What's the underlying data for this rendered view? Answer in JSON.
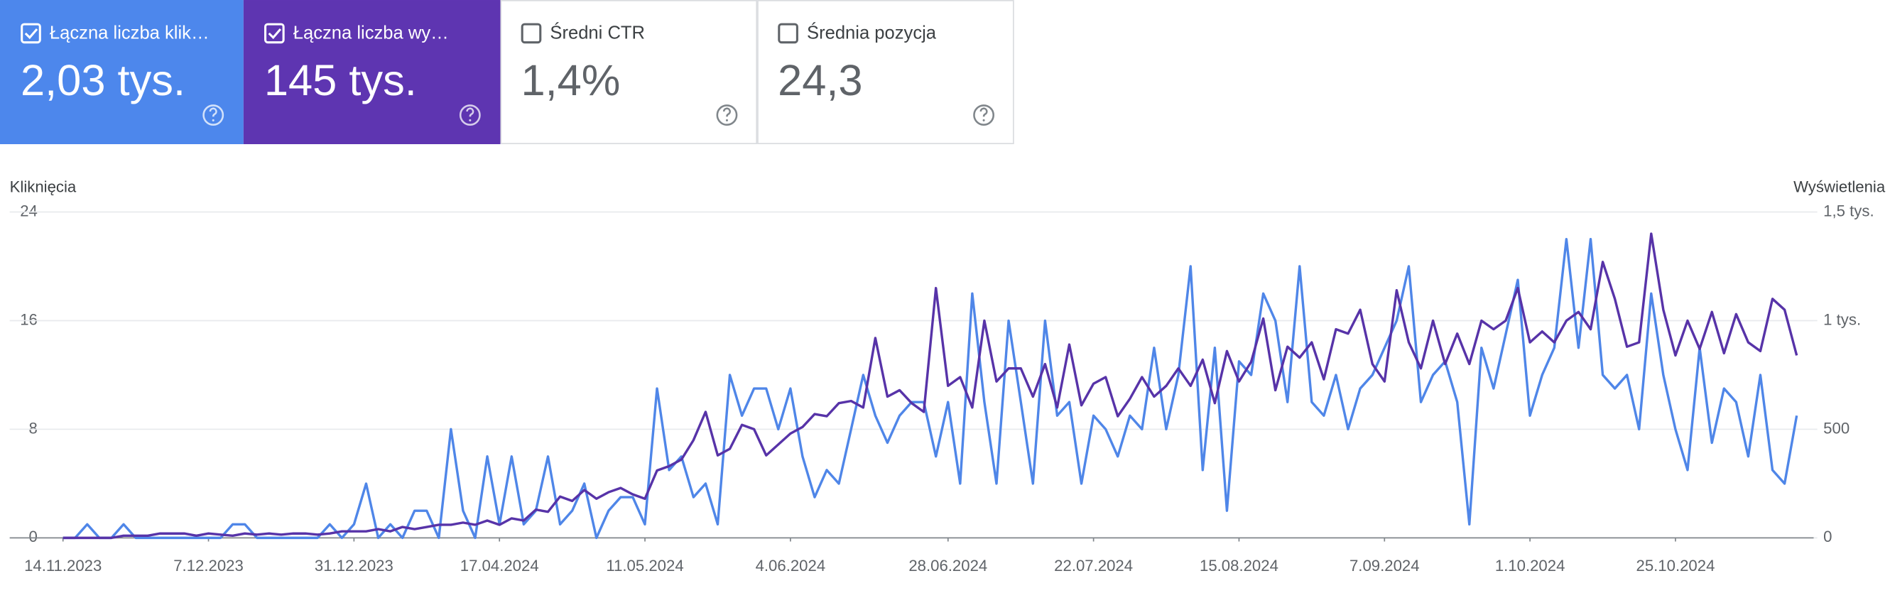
{
  "cards": [
    {
      "label": "Łączna liczba klik…",
      "value": "2,03 tys.",
      "checked": true,
      "color": "#4d87ec"
    },
    {
      "label": "Łączna liczba wy…",
      "value": "145 tys.",
      "checked": true,
      "color": "#5e35b1"
    },
    {
      "label": "Średni CTR",
      "value": "1,4%",
      "checked": false,
      "color": "#ffffff"
    },
    {
      "label": "Średnia pozycja",
      "value": "24,3",
      "checked": false,
      "color": "#ffffff"
    }
  ],
  "chart_data": {
    "type": "line",
    "y_label": "Kliknięcia",
    "y2_label": "Wyświetlenia",
    "xlim": [
      0,
      143
    ],
    "xticks": [
      {
        "value": 0,
        "label": "14.11.2023"
      },
      {
        "value": 12,
        "label": "7.12.2023"
      },
      {
        "value": 24,
        "label": "31.12.2023"
      },
      {
        "value": 36,
        "label": "17.04.2024"
      },
      {
        "value": 48,
        "label": "11.05.2024"
      },
      {
        "value": 60,
        "label": "4.06.2024"
      },
      {
        "value": 73,
        "label": "28.06.2024"
      },
      {
        "value": 85,
        "label": "22.07.2024"
      },
      {
        "value": 97,
        "label": "15.08.2024"
      },
      {
        "value": 109,
        "label": "7.09.2024"
      },
      {
        "value": 121,
        "label": "1.10.2024"
      },
      {
        "value": 133,
        "label": "25.10.2024"
      }
    ],
    "ylim": [
      0,
      24
    ],
    "yticks": [
      0,
      8,
      16,
      24
    ],
    "y2lim": [
      0,
      1500
    ],
    "y2ticks": [
      0,
      500,
      {
        "value": 1000,
        "label": "1 tys."
      },
      {
        "value": 1500,
        "label": "1,5 tys."
      }
    ],
    "grid": true,
    "series": [
      {
        "name": "Kliknięcia",
        "color": "#4f86e8",
        "values": [
          0,
          0,
          1,
          0,
          0,
          1,
          0,
          0,
          0,
          0,
          0,
          0,
          0,
          0,
          1,
          1,
          0,
          0,
          0,
          0,
          0,
          0,
          1,
          0,
          1,
          4,
          0,
          1,
          0,
          2,
          2,
          0,
          8,
          2,
          0,
          6,
          1,
          6,
          1,
          2,
          6,
          1,
          2,
          4,
          0,
          2,
          3,
          3,
          1,
          11,
          5,
          6,
          3,
          4,
          1,
          12,
          9,
          11,
          11,
          8,
          11,
          6,
          3,
          5,
          4,
          8,
          12,
          9,
          7,
          9,
          10,
          10,
          6,
          10,
          4,
          18,
          10,
          4,
          16,
          10,
          4,
          16,
          9,
          10,
          4,
          9,
          8,
          6,
          9,
          8,
          14,
          8,
          12,
          20,
          5,
          14,
          2,
          13,
          12,
          18,
          16,
          10,
          20,
          10,
          9,
          12,
          8,
          11,
          12,
          14,
          16,
          20,
          10,
          12,
          13,
          10,
          1,
          14,
          11,
          15,
          19,
          9,
          12,
          14,
          22,
          14,
          22,
          12,
          11,
          12,
          8,
          18,
          12,
          8,
          5,
          14,
          7,
          11,
          10,
          6,
          12,
          5,
          4,
          9
        ]
      },
      {
        "name": "Wyświetlenia",
        "color": "#5733a8",
        "axis": "y2",
        "values": [
          0,
          0,
          0,
          0,
          0,
          10,
          10,
          10,
          20,
          20,
          20,
          10,
          20,
          15,
          10,
          20,
          15,
          20,
          15,
          20,
          20,
          15,
          20,
          30,
          30,
          30,
          40,
          30,
          50,
          40,
          50,
          60,
          60,
          70,
          60,
          80,
          60,
          90,
          80,
          130,
          120,
          190,
          170,
          220,
          180,
          210,
          230,
          200,
          180,
          310,
          330,
          360,
          450,
          580,
          380,
          410,
          520,
          500,
          380,
          430,
          480,
          510,
          570,
          560,
          620,
          630,
          600,
          920,
          650,
          680,
          620,
          580,
          1150,
          700,
          740,
          600,
          1000,
          720,
          780,
          780,
          650,
          800,
          600,
          890,
          610,
          710,
          740,
          560,
          640,
          740,
          650,
          700,
          780,
          700,
          820,
          620,
          860,
          720,
          810,
          1010,
          680,
          880,
          830,
          900,
          730,
          960,
          940,
          1050,
          800,
          720,
          1140,
          900,
          780,
          1000,
          800,
          940,
          800,
          1000,
          960,
          1000,
          1150,
          900,
          950,
          900,
          1000,
          1040,
          960,
          1270,
          1100,
          880,
          900,
          1400,
          1050,
          840,
          1000,
          870,
          1040,
          850,
          1030,
          900,
          860,
          1100,
          1050,
          840
        ]
      }
    ]
  }
}
